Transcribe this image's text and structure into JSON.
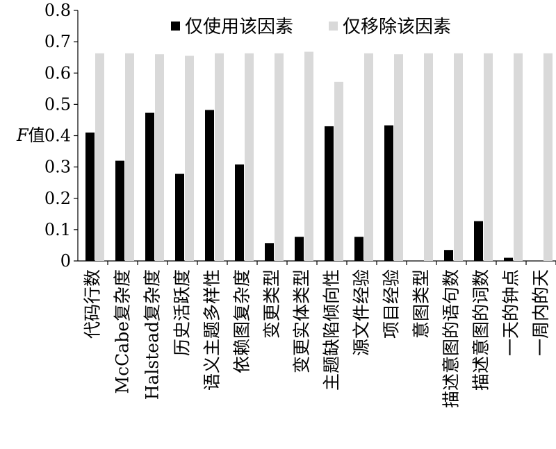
{
  "chart_data": {
    "type": "bar",
    "categories": [
      "代码行数",
      "McCabe复杂度",
      "Halstead复杂度",
      "历史活跃度",
      "语义主题多样性",
      "依赖图复杂度",
      "变更类型",
      "变更实体类型",
      "主题缺陷倾向性",
      "源文件经验",
      "项目经验",
      "意图类型",
      "描述意图的语句数",
      "描述意图的词数",
      "一天的钟点",
      "一周内的天"
    ],
    "series": [
      {
        "name": "仅使用该因素",
        "color": "#000000",
        "values": [
          0.41,
          0.32,
          0.473,
          0.278,
          0.482,
          0.308,
          0.057,
          0.077,
          0.43,
          0.077,
          0.433,
          0,
          0.035,
          0.127,
          0.01,
          0
        ]
      },
      {
        "name": "仅移除该因素",
        "color": "#d9d9d9",
        "values": [
          0.663,
          0.663,
          0.66,
          0.655,
          0.663,
          0.663,
          0.663,
          0.668,
          0.572,
          0.663,
          0.66,
          0.663,
          0.663,
          0.663,
          0.663,
          0.663
        ]
      }
    ],
    "ylabel": "F值",
    "xlabel": "",
    "ylim": [
      0,
      0.8
    ],
    "yticks": [
      "0",
      "0.1",
      "0.2",
      "0.3",
      "0.4",
      "0.5",
      "0.6",
      "0.7",
      "0.8"
    ],
    "legend": "top",
    "grid": false
  }
}
